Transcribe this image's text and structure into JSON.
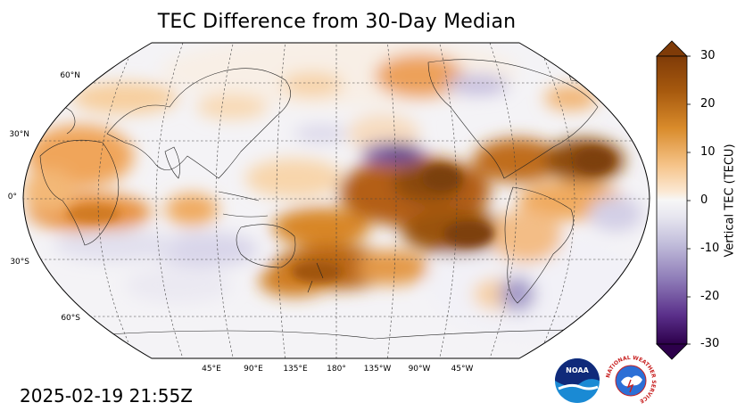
{
  "title": "TEC Difference from 30-Day Median",
  "timestamp": "2025-02-19 21:55Z",
  "colorbar": {
    "label": "Vertical TEC (TECU)",
    "ticks": [
      "30",
      "20",
      "10",
      "0",
      "-10",
      "-20",
      "-30"
    ],
    "min": -30,
    "max": 30
  },
  "map": {
    "projection": "robinson",
    "central_longitude": 180,
    "lat_labels": [
      "60°N",
      "30°N",
      "0°",
      "30°S",
      "60°S"
    ],
    "lon_labels": [
      "45°E",
      "90°E",
      "135°E",
      "180°",
      "135°W",
      "90°W",
      "45°W"
    ]
  },
  "logos": {
    "noaa_text": "NOAA",
    "nws_text": "NATIONAL WEATHER SERVICE"
  },
  "colors": {
    "positive_strong": "#8a4a0c",
    "positive_mid": "#d9882a",
    "positive_light": "#f6c48a",
    "neutral": "#f4f3f6",
    "negative_light": "#c9c6e0",
    "negative_strong": "#3a0a5e"
  }
}
